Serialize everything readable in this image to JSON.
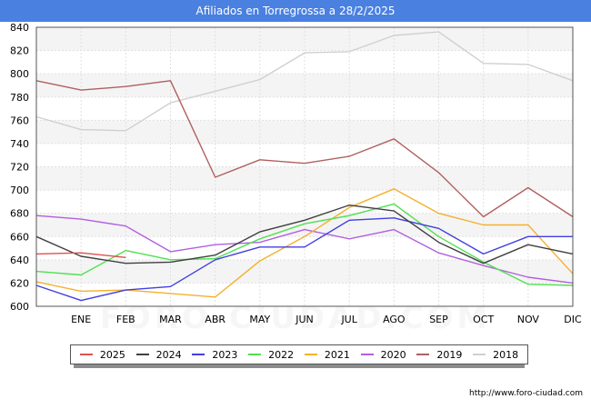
{
  "header": {
    "title": "Afiliados en Torregrossa a 28/2/2025"
  },
  "watermark": "FORO-CIUDAD.COM",
  "footer": {
    "url": "http://www.foro-ciudad.com"
  },
  "chart_data": {
    "type": "line",
    "title": "Afiliados en Torregrossa a 28/2/2025",
    "categories": [
      "",
      "ENE",
      "FEB",
      "MAR",
      "ABR",
      "MAY",
      "JUN",
      "JUL",
      "AGO",
      "SEP",
      "OCT",
      "NOV",
      "DIC"
    ],
    "ylim": [
      600,
      840
    ],
    "yticks": [
      600,
      620,
      640,
      660,
      680,
      700,
      720,
      740,
      760,
      780,
      800,
      820,
      840
    ],
    "grid": true,
    "legend_position": "bottom",
    "series": [
      {
        "name": "2025",
        "color": "#e05050",
        "values": [
          645,
          646,
          642,
          null,
          null,
          null,
          null,
          null,
          null,
          null,
          null,
          null,
          null
        ]
      },
      {
        "name": "2024",
        "color": "#404040",
        "values": [
          660,
          643,
          637,
          638,
          644,
          664,
          674,
          687,
          682,
          655,
          637,
          653,
          645
        ]
      },
      {
        "name": "2023",
        "color": "#4040e0",
        "values": [
          618,
          605,
          614,
          617,
          640,
          651,
          651,
          674,
          676,
          667,
          645,
          660,
          660
        ]
      },
      {
        "name": "2022",
        "color": "#50e050",
        "values": [
          630,
          627,
          648,
          640,
          641,
          658,
          671,
          678,
          688,
          660,
          638,
          619,
          618
        ]
      },
      {
        "name": "2021",
        "color": "#f5b030",
        "values": [
          621,
          613,
          614,
          611,
          608,
          639,
          660,
          685,
          701,
          680,
          670,
          670,
          628
        ]
      },
      {
        "name": "2020",
        "color": "#b060e0",
        "values": [
          678,
          675,
          669,
          647,
          653,
          655,
          666,
          658,
          666,
          646,
          635,
          625,
          620
        ]
      },
      {
        "name": "2019",
        "color": "#b06060",
        "values": [
          794,
          786,
          789,
          794,
          711,
          726,
          723,
          729,
          744,
          715,
          677,
          702,
          677
        ]
      },
      {
        "name": "2018",
        "color": "#d0d0d0",
        "values": [
          763,
          752,
          751,
          775,
          785,
          795,
          818,
          819,
          833,
          836,
          809,
          808,
          794
        ]
      }
    ]
  }
}
